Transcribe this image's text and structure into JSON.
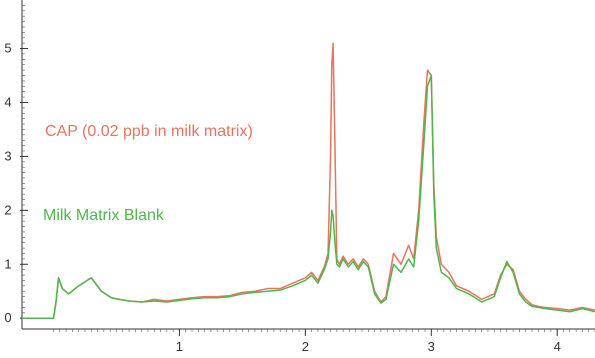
{
  "chart_data": {
    "type": "line",
    "title": "",
    "xlabel": "",
    "ylabel": "",
    "xlim": [
      -0.25,
      4.3
    ],
    "ylim": [
      -0.2,
      5.9
    ],
    "grid": false,
    "legend": "none",
    "x_ticks": [
      {
        "value": 1,
        "label": "1"
      },
      {
        "value": 2,
        "label": "2"
      },
      {
        "value": 3,
        "label": "3"
      },
      {
        "value": 4,
        "label": "4"
      }
    ],
    "y_ticks": [
      {
        "value": 0,
        "label": "0"
      },
      {
        "value": 1,
        "label": "1"
      },
      {
        "value": 2,
        "label": "2"
      },
      {
        "value": 3,
        "label": "3"
      },
      {
        "value": 4,
        "label": "4"
      },
      {
        "value": 5,
        "label": "5"
      }
    ],
    "series": [
      {
        "name": "CAP (0.02 ppb in milk matrix)",
        "color": "#e8735f",
        "x": [
          -0.25,
          0.0,
          0.02,
          0.04,
          0.07,
          0.12,
          0.2,
          0.3,
          0.38,
          0.46,
          0.52,
          0.6,
          0.7,
          0.8,
          0.9,
          1.0,
          1.1,
          1.2,
          1.3,
          1.4,
          1.5,
          1.6,
          1.7,
          1.8,
          1.9,
          2.0,
          2.05,
          2.1,
          2.15,
          2.18,
          2.2,
          2.21,
          2.22,
          2.235,
          2.25,
          2.27,
          2.3,
          2.34,
          2.38,
          2.42,
          2.46,
          2.5,
          2.55,
          2.6,
          2.64,
          2.7,
          2.76,
          2.82,
          2.86,
          2.9,
          2.94,
          2.97,
          3.0,
          3.02,
          3.04,
          3.08,
          3.14,
          3.2,
          3.3,
          3.4,
          3.5,
          3.55,
          3.6,
          3.65,
          3.7,
          3.75,
          3.8,
          3.85,
          3.9,
          4.0,
          4.1,
          4.2,
          4.3
        ],
        "y": [
          0.0,
          0.0,
          0.3,
          0.75,
          0.55,
          0.45,
          0.6,
          0.75,
          0.5,
          0.38,
          0.35,
          0.32,
          0.3,
          0.35,
          0.32,
          0.35,
          0.38,
          0.4,
          0.4,
          0.42,
          0.48,
          0.5,
          0.55,
          0.55,
          0.65,
          0.75,
          0.85,
          0.7,
          0.95,
          1.2,
          3.0,
          4.7,
          5.1,
          3.2,
          1.1,
          1.0,
          1.15,
          1.0,
          1.1,
          0.95,
          1.1,
          1.0,
          0.5,
          0.3,
          0.4,
          1.2,
          1.0,
          1.35,
          1.1,
          2.0,
          3.6,
          4.6,
          4.5,
          2.5,
          1.5,
          1.0,
          0.85,
          0.6,
          0.5,
          0.35,
          0.45,
          0.8,
          1.0,
          0.9,
          0.5,
          0.35,
          0.25,
          0.22,
          0.2,
          0.18,
          0.15,
          0.2,
          0.15
        ]
      },
      {
        "name": "Milk Matrix Blank",
        "color": "#4cb84a",
        "x": [
          -0.25,
          0.0,
          0.02,
          0.04,
          0.07,
          0.12,
          0.2,
          0.3,
          0.38,
          0.46,
          0.52,
          0.6,
          0.7,
          0.8,
          0.9,
          1.0,
          1.1,
          1.2,
          1.3,
          1.4,
          1.5,
          1.6,
          1.7,
          1.8,
          1.9,
          2.0,
          2.05,
          2.1,
          2.15,
          2.18,
          2.2,
          2.21,
          2.22,
          2.235,
          2.25,
          2.27,
          2.3,
          2.34,
          2.38,
          2.42,
          2.46,
          2.5,
          2.55,
          2.6,
          2.64,
          2.7,
          2.76,
          2.82,
          2.86,
          2.9,
          2.94,
          2.97,
          3.0,
          3.02,
          3.04,
          3.08,
          3.14,
          3.2,
          3.3,
          3.4,
          3.5,
          3.55,
          3.6,
          3.65,
          3.7,
          3.75,
          3.8,
          3.85,
          3.9,
          4.0,
          4.1,
          4.2,
          4.3
        ],
        "y": [
          0.0,
          0.0,
          0.3,
          0.75,
          0.55,
          0.45,
          0.6,
          0.75,
          0.5,
          0.38,
          0.35,
          0.32,
          0.3,
          0.32,
          0.3,
          0.33,
          0.36,
          0.38,
          0.38,
          0.4,
          0.45,
          0.48,
          0.5,
          0.52,
          0.6,
          0.7,
          0.8,
          0.65,
          0.9,
          1.1,
          1.6,
          2.0,
          1.9,
          1.4,
          1.0,
          0.95,
          1.1,
          0.95,
          1.05,
          0.9,
          1.05,
          0.95,
          0.45,
          0.28,
          0.35,
          1.0,
          0.85,
          1.1,
          0.95,
          1.8,
          3.2,
          4.3,
          4.5,
          2.3,
          1.3,
          0.85,
          0.75,
          0.55,
          0.45,
          0.3,
          0.4,
          0.75,
          1.05,
          0.85,
          0.45,
          0.3,
          0.22,
          0.2,
          0.18,
          0.15,
          0.12,
          0.18,
          0.12
        ]
      }
    ]
  }
}
